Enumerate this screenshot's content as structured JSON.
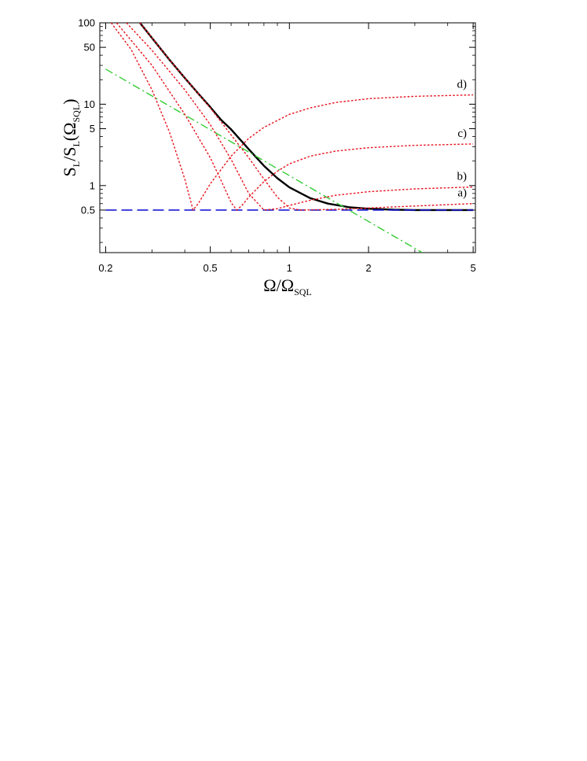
{
  "chart_data": {
    "type": "line",
    "title": "",
    "xlabel": {
      "main": "Ω/Ω",
      "sub": "SQL"
    },
    "ylabel": {
      "p1": "S",
      "s1": "L",
      "p2": "/S",
      "s2": "L",
      "p3": "(Ω",
      "s3": "SQL",
      "p4": ")"
    },
    "xscale": "log",
    "yscale": "log",
    "xlim": [
      0.19,
      5.1
    ],
    "ylim": [
      0.15,
      100
    ],
    "xticks": [
      {
        "value": 0.2,
        "label": "0.2"
      },
      {
        "value": 0.5,
        "label": "0.5"
      },
      {
        "value": 1,
        "label": "1"
      },
      {
        "value": 2,
        "label": "2"
      },
      {
        "value": 5,
        "label": "5"
      }
    ],
    "yticks": [
      {
        "value": 0.5,
        "label": "0.5"
      },
      {
        "value": 1,
        "label": "1"
      },
      {
        "value": 5,
        "label": "5"
      },
      {
        "value": 10,
        "label": "10"
      },
      {
        "value": 50,
        "label": "50"
      },
      {
        "value": 100,
        "label": "100"
      }
    ],
    "grid": false,
    "colors": {
      "black": "#000000",
      "red": "#e8141e",
      "green": "#33cc33",
      "blue": "#1a1ad6"
    },
    "series": [
      {
        "label": "",
        "color": "#000000",
        "style": "solid",
        "x": [
          0.27,
          0.3,
          0.35,
          0.4,
          0.45,
          0.5,
          0.55,
          0.6,
          0.7,
          0.8,
          0.9,
          1.0,
          1.2,
          1.4,
          1.7,
          2.0,
          2.5,
          3.0,
          4.0,
          5.0
        ],
        "y": [
          100,
          65,
          35,
          21,
          13.5,
          9.2,
          6.4,
          4.9,
          2.8,
          1.75,
          1.23,
          0.95,
          0.7,
          0.6,
          0.54,
          0.52,
          0.505,
          0.5,
          0.5,
          0.5
        ]
      },
      {
        "label": "",
        "color": "#1a1ad6",
        "style": "dashed",
        "x": [
          0.2,
          5.0
        ],
        "y": [
          0.5,
          0.5
        ]
      },
      {
        "label": "",
        "color": "#33cc33",
        "style": "dashdot",
        "x": [
          0.2,
          3.2
        ],
        "y": [
          27,
          0.15
        ]
      },
      {
        "label": "a)",
        "color": "#e8141e",
        "style": "dotted",
        "x": [
          0.27,
          0.35,
          0.5,
          0.6,
          0.7,
          0.8,
          0.9,
          1.0,
          1.1,
          1.5,
          2.0,
          3.0,
          5.0
        ],
        "y": [
          100,
          35,
          9,
          4.2,
          2.2,
          1.2,
          0.72,
          0.53,
          0.5,
          0.51,
          0.53,
          0.56,
          0.6
        ]
      },
      {
        "label": "b)",
        "color": "#e8141e",
        "style": "dotted",
        "x": [
          0.24,
          0.3,
          0.4,
          0.5,
          0.6,
          0.7,
          0.8,
          0.9,
          1.0,
          1.2,
          1.5,
          2.0,
          3.0,
          5.0
        ],
        "y": [
          100,
          46,
          15,
          5.6,
          2.1,
          0.8,
          0.5,
          0.52,
          0.57,
          0.66,
          0.76,
          0.84,
          0.91,
          0.96
        ]
      },
      {
        "label": "c)",
        "color": "#e8141e",
        "style": "dotted",
        "x": [
          0.22,
          0.3,
          0.4,
          0.5,
          0.55,
          0.6,
          0.63,
          0.66,
          0.7,
          0.8,
          0.9,
          1.0,
          1.2,
          1.5,
          2.0,
          3.0,
          5.0
        ],
        "y": [
          100,
          30,
          7.5,
          2.2,
          1.15,
          0.62,
          0.5,
          0.57,
          0.72,
          1.12,
          1.5,
          1.85,
          2.3,
          2.65,
          2.92,
          3.12,
          3.25
        ]
      },
      {
        "label": "d)",
        "color": "#e8141e",
        "style": "dotted",
        "x": [
          0.21,
          0.25,
          0.3,
          0.35,
          0.4,
          0.43,
          0.45,
          0.5,
          0.6,
          0.7,
          0.8,
          1.0,
          1.2,
          1.5,
          2.0,
          3.0,
          5.0
        ],
        "y": [
          100,
          47,
          15,
          4.5,
          1.2,
          0.5,
          0.6,
          1.05,
          2.3,
          3.8,
          5.2,
          7.5,
          9.0,
          10.5,
          11.7,
          12.5,
          13.0
        ]
      }
    ]
  }
}
